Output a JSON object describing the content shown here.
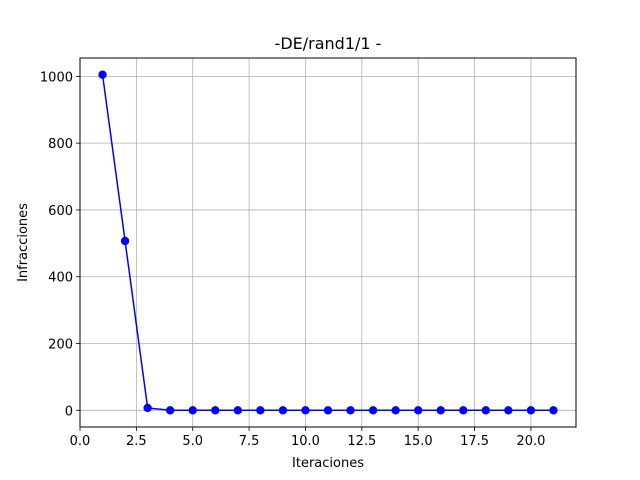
{
  "chart_data": {
    "type": "line",
    "title": "-DE/rand1/1 -",
    "xlabel": "Iteraciones",
    "ylabel": "Infracciones",
    "xlim": [
      0,
      22
    ],
    "ylim": [
      -50,
      1055
    ],
    "xticks": [
      0,
      2.5,
      5,
      7.5,
      10,
      12.5,
      15,
      17.5,
      20
    ],
    "xtick_labels": [
      "0.0",
      "2.5",
      "5.0",
      "7.5",
      "10.0",
      "12.5",
      "15.0",
      "17.5",
      "20.0"
    ],
    "yticks": [
      0,
      200,
      400,
      600,
      800,
      1000
    ],
    "ytick_labels": [
      "0",
      "200",
      "400",
      "600",
      "800",
      "1000"
    ],
    "grid": true,
    "series": [
      {
        "color": "#0000ff",
        "marker": "circle",
        "x": [
          1,
          2,
          3,
          4,
          5,
          6,
          7,
          8,
          9,
          10,
          11,
          12,
          13,
          14,
          15,
          16,
          17,
          18,
          19,
          20,
          21
        ],
        "y": [
          1005,
          507,
          7,
          0,
          0,
          0,
          0,
          0,
          0,
          0,
          0,
          0,
          0,
          0,
          0,
          0,
          0,
          0,
          0,
          0,
          0
        ]
      }
    ]
  }
}
